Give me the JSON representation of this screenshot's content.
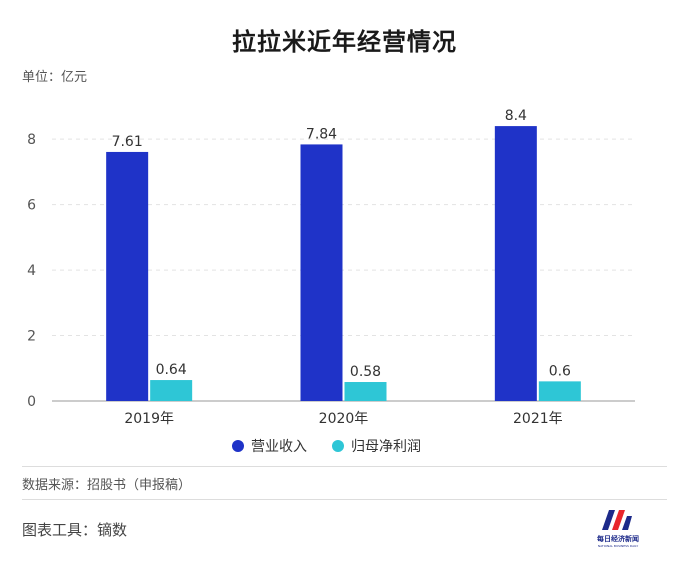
{
  "chart_data": {
    "type": "bar",
    "title": "拉拉米近年经营情况",
    "unit_label": "单位：亿元",
    "categories": [
      "2019年",
      "2020年",
      "2021年"
    ],
    "series": [
      {
        "name": "营业收入",
        "color": "#1f33c8",
        "values": [
          7.61,
          7.84,
          8.4
        ],
        "labels": [
          "7.61",
          "7.84",
          "8.4"
        ]
      },
      {
        "name": "归母净利润",
        "color": "#2ec6d6",
        "values": [
          0.64,
          0.58,
          0.6
        ],
        "labels": [
          "0.64",
          "0.58",
          "0.6"
        ]
      }
    ],
    "ylim": [
      0,
      8.8
    ],
    "yticks": [
      0,
      2,
      4,
      6,
      8
    ],
    "grid": true,
    "legend_position": "bottom-center"
  },
  "footer": {
    "source": "数据来源：招股书（申报稿）",
    "tool": "图表工具：镝数"
  },
  "logo": {
    "name": "每日经济新闻",
    "sub": "NATIONAL BUSINESS DAILY",
    "colors": {
      "primary": "#1d2a8a",
      "accent": "#e8262d"
    }
  }
}
